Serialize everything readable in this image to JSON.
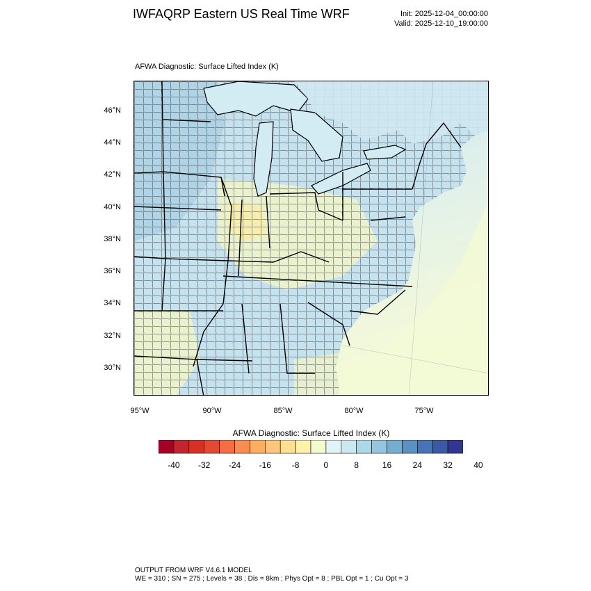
{
  "header": {
    "title": "IWFAQRP Eastern US Real Time WRF",
    "init": "Init: 2025-12-04_00:00:00",
    "valid": "Valid: 2025-12-10_19:00:00"
  },
  "map": {
    "subtitle": "AFWA Diagnostic: Surface Lifted Index   (K)",
    "lat_labels": [
      "46°N",
      "44°N",
      "42°N",
      "40°N",
      "38°N",
      "36°N",
      "34°N",
      "32°N",
      "30°N"
    ],
    "lon_labels": [
      "95°W",
      "90°W",
      "85°W",
      "80°W",
      "75°W"
    ],
    "colors": {
      "land_base": "#c6e2ee",
      "lake": "#d3ebf3",
      "ocean_north": "#cde7f0",
      "ocean_south": "#f2f9d8",
      "warm_patch": "#f2f5c6",
      "yellow_patch": "#f5efb4",
      "blue_patch": "#a9cde3",
      "county_line": "#222222",
      "state_line": "#000000"
    }
  },
  "colorbar": {
    "title": "AFWA Diagnostic: Surface Lifted Index  (K)",
    "tick_labels": [
      "-40",
      "-32",
      "-24",
      "-16",
      "-8",
      "0",
      "8",
      "16",
      "24",
      "32",
      "40"
    ],
    "colors": [
      "#a50026",
      "#c2252f",
      "#d73027",
      "#e34a33",
      "#f46d43",
      "#f88d52",
      "#fdae61",
      "#fec67b",
      "#fee090",
      "#fef2aa",
      "#f3fbce",
      "#e0f3f8",
      "#cbe7f0",
      "#abd9e9",
      "#94c6df",
      "#74add1",
      "#5b90c2",
      "#4575b4",
      "#3c59a6",
      "#313695"
    ]
  },
  "footer": {
    "line1": "OUTPUT FROM WRF V4.6.1 MODEL",
    "line2": "WE = 310 ; SN = 275 ; Levels = 38 ; Dis = 8km ; Phys Opt = 8 ; PBL Opt = 1 ; Cu Opt = 3"
  }
}
